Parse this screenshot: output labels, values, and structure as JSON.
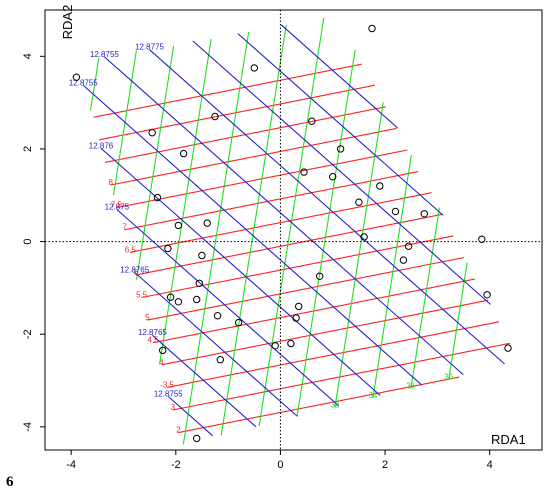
{
  "figure_number": "6",
  "chart_data": {
    "type": "scatter",
    "title": "",
    "xlabel": "RDA1",
    "ylabel": "RDA2",
    "xlim": [
      -4.5,
      5.0
    ],
    "ylim": [
      -4.5,
      5.0
    ],
    "x_ticks": [
      "-4",
      "-2",
      "0",
      "2",
      "4"
    ],
    "y_ticks": [
      "-4",
      "-2",
      "0",
      "2",
      "4"
    ],
    "reference_lines": {
      "x": 0,
      "y": 0,
      "style": "dotted"
    },
    "points": [
      {
        "x": -3.9,
        "y": 3.55
      },
      {
        "x": 1.75,
        "y": 4.6
      },
      {
        "x": -0.5,
        "y": 3.75
      },
      {
        "x": -2.45,
        "y": 2.35
      },
      {
        "x": -1.25,
        "y": 2.7
      },
      {
        "x": 0.6,
        "y": 2.6
      },
      {
        "x": -1.85,
        "y": 1.9
      },
      {
        "x": 1.15,
        "y": 2.0
      },
      {
        "x": 0.45,
        "y": 1.5
      },
      {
        "x": 1.0,
        "y": 1.4
      },
      {
        "x": 1.9,
        "y": 1.2
      },
      {
        "x": -2.35,
        "y": 0.95
      },
      {
        "x": 1.5,
        "y": 0.85
      },
      {
        "x": 2.2,
        "y": 0.65
      },
      {
        "x": 2.75,
        "y": 0.6
      },
      {
        "x": -1.95,
        "y": 0.35
      },
      {
        "x": -1.4,
        "y": 0.4
      },
      {
        "x": 1.6,
        "y": 0.1
      },
      {
        "x": -2.15,
        "y": -0.15
      },
      {
        "x": 2.45,
        "y": -0.1
      },
      {
        "x": 3.85,
        "y": 0.05
      },
      {
        "x": -1.5,
        "y": -0.3
      },
      {
        "x": 2.35,
        "y": -0.4
      },
      {
        "x": 0.75,
        "y": -0.75
      },
      {
        "x": -1.55,
        "y": -0.9
      },
      {
        "x": -2.1,
        "y": -1.2
      },
      {
        "x": -1.95,
        "y": -1.3
      },
      {
        "x": -1.6,
        "y": -1.25
      },
      {
        "x": 3.95,
        "y": -1.15
      },
      {
        "x": 0.35,
        "y": -1.4
      },
      {
        "x": -1.2,
        "y": -1.6
      },
      {
        "x": 0.3,
        "y": -1.65
      },
      {
        "x": -0.8,
        "y": -1.75
      },
      {
        "x": 0.2,
        "y": -2.2
      },
      {
        "x": -0.1,
        "y": -2.25
      },
      {
        "x": -2.25,
        "y": -2.35
      },
      {
        "x": 4.35,
        "y": -2.3
      },
      {
        "x": -1.15,
        "y": -2.55
      },
      {
        "x": -1.6,
        "y": -4.25
      }
    ],
    "contours": [
      {
        "name": "red",
        "color": "#ff2020",
        "direction": [
          0.976,
          0.218
        ],
        "count": 15,
        "offset_start": -3.6,
        "offset_step": 0.5,
        "labels": [
          "2",
          "3",
          "-3.5",
          "4",
          "4.5",
          "5",
          "5.5",
          "6",
          "6.5",
          "7",
          "7.5",
          "8"
        ]
      },
      {
        "name": "green",
        "color": "#22dd22",
        "direction": [
          0.139,
          0.99
        ],
        "count": 12,
        "offset_start": -3.6,
        "offset_step": 0.69,
        "labels": [
          "36",
          "36",
          "34",
          "32"
        ]
      },
      {
        "name": "blue",
        "color": "#2222cc",
        "direction": [
          0.707,
          -0.707
        ],
        "count": 12,
        "offset_start": -4.6,
        "offset_step": 0.72,
        "labels": [
          "12.8755",
          "12.8765",
          "12.8765",
          "12.875",
          "12.876",
          "12.8755",
          "12.8755",
          "12.8775"
        ]
      }
    ]
  }
}
